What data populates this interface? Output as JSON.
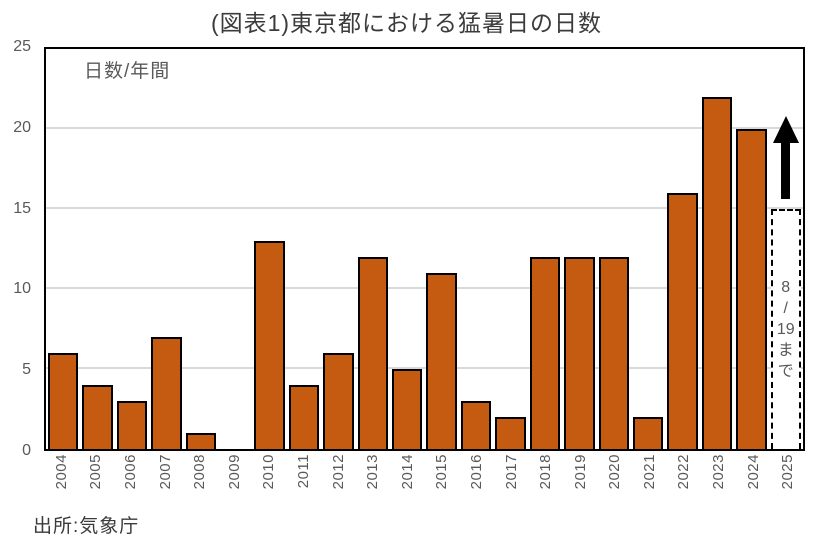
{
  "chart_data": {
    "type": "bar",
    "title": "(図表1)東京都における猛暑日の日数",
    "inner_label": "日数/年間",
    "source": "出所:気象庁",
    "categories": [
      "2004",
      "2005",
      "2006",
      "2007",
      "2008",
      "2009",
      "2010",
      "2011",
      "2012",
      "2013",
      "2014",
      "2015",
      "2016",
      "2017",
      "2018",
      "2019",
      "2020",
      "2021",
      "2022",
      "2023",
      "2024",
      "2025"
    ],
    "values": [
      6,
      4,
      3,
      7,
      1,
      0,
      13,
      4,
      6,
      12,
      5,
      11,
      3,
      2,
      12,
      12,
      12,
      2,
      16,
      22,
      20,
      15
    ],
    "ylim": [
      0,
      25
    ],
    "yticks": [
      0,
      5,
      10,
      15,
      20,
      25
    ],
    "grid": true,
    "legend": "none",
    "bar_color": "#C55A11",
    "bar_border_color": "#000000",
    "gridline_color": "#D9D9D9",
    "axis_text_color": "#595959",
    "special_last_bar": {
      "year": "2025",
      "value": 15,
      "style": "dashed-outline-projection",
      "label": "8/19まで",
      "label_lines": [
        "8",
        "/",
        "19",
        "ま",
        "で"
      ],
      "arrow": "up",
      "arrow_color": "#000000"
    }
  }
}
